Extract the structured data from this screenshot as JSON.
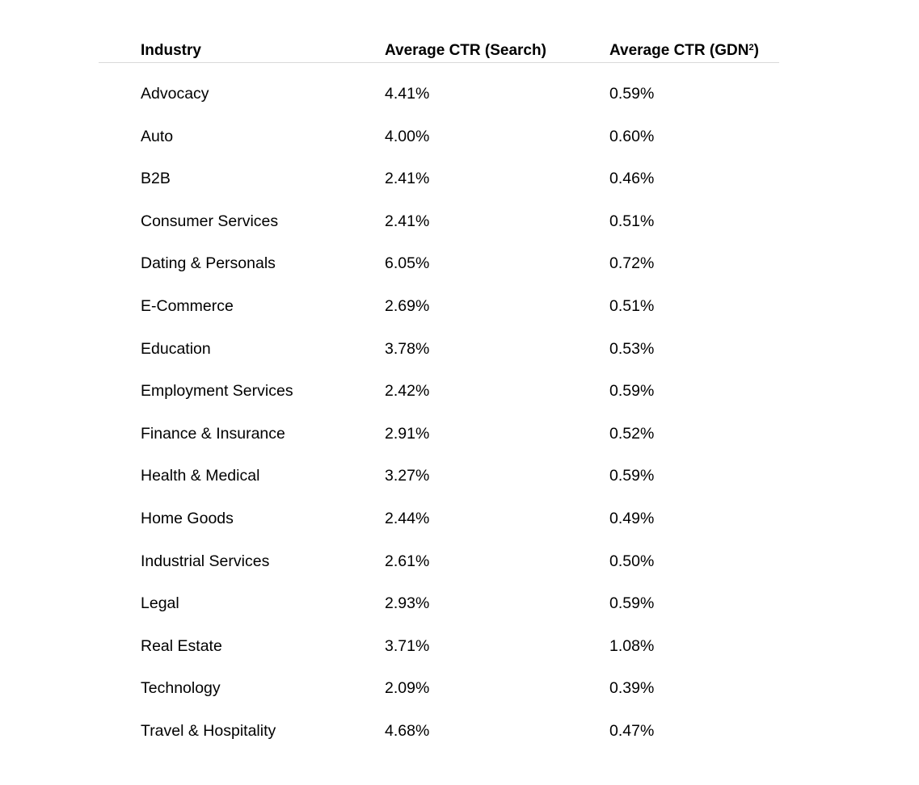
{
  "table": {
    "headers": {
      "industry": "Industry",
      "ctr_search": "Average CTR (Search)",
      "ctr_gdn_prefix": "Average CTR (GDN",
      "ctr_gdn_superscript": "2",
      "ctr_gdn_suffix": ")"
    },
    "rows": [
      {
        "industry": "Advocacy",
        "search": "4.41%",
        "gdn": "0.59%"
      },
      {
        "industry": "Auto",
        "search": "4.00%",
        "gdn": "0.60%"
      },
      {
        "industry": "B2B",
        "search": "2.41%",
        "gdn": "0.46%"
      },
      {
        "industry": "Consumer Services",
        "search": "2.41%",
        "gdn": "0.51%"
      },
      {
        "industry": "Dating & Personals",
        "search": "6.05%",
        "gdn": "0.72%"
      },
      {
        "industry": "E-Commerce",
        "search": "2.69%",
        "gdn": "0.51%"
      },
      {
        "industry": "Education",
        "search": "3.78%",
        "gdn": "0.53%"
      },
      {
        "industry": "Employment Services",
        "search": "2.42%",
        "gdn": "0.59%"
      },
      {
        "industry": "Finance & Insurance",
        "search": "2.91%",
        "gdn": "0.52%"
      },
      {
        "industry": "Health & Medical",
        "search": "3.27%",
        "gdn": "0.59%"
      },
      {
        "industry": "Home Goods",
        "search": "2.44%",
        "gdn": "0.49%"
      },
      {
        "industry": "Industrial Services",
        "search": "2.61%",
        "gdn": "0.50%"
      },
      {
        "industry": "Legal",
        "search": "2.93%",
        "gdn": "0.59%"
      },
      {
        "industry": "Real Estate",
        "search": "3.71%",
        "gdn": "1.08%"
      },
      {
        "industry": "Technology",
        "search": "2.09%",
        "gdn": "0.39%"
      },
      {
        "industry": "Travel & Hospitality",
        "search": "4.68%",
        "gdn": "0.47%"
      }
    ]
  }
}
